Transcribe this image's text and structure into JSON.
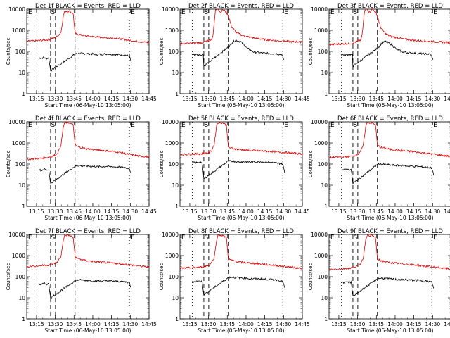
{
  "colors": {
    "events": "#000000",
    "lld": "#dd0000",
    "axis": "#000000"
  },
  "chart_data": [
    {
      "type": "line",
      "title": "Det 1f BLACK = Events, RED = LLD",
      "xlabel": "Start Time (06-May-10 13:05:00)",
      "ylabel": "Counts/sec",
      "x_ticks": [
        "13:15",
        "13:30",
        "13:45",
        "14:00",
        "14:15",
        "14:30",
        "14:45"
      ],
      "y_ticks": [
        "1",
        "10",
        "100",
        "1000",
        "10000"
      ],
      "ylog": true,
      "ylim": [
        1,
        10000
      ],
      "x_range_min": [
        0,
        100
      ],
      "markers": {
        "E_left": "E",
        "S": "S",
        "E_right": "E"
      },
      "series": [
        {
          "name": "BLACK = Events",
          "x": [
            10,
            12,
            14,
            16,
            18,
            19.5,
            39.5,
            42,
            50,
            58,
            66,
            74,
            80,
            84,
            85.5
          ],
          "values": [
            50,
            48,
            52,
            46,
            50,
            12,
            75,
            80,
            78,
            72,
            76,
            70,
            68,
            60,
            30
          ]
        },
        {
          "name": "RED = LLD",
          "x": [
            0,
            6,
            12,
            18,
            21,
            24,
            26,
            28,
            30,
            31,
            35,
            38,
            39.5,
            42,
            50,
            58,
            66,
            74,
            82,
            92,
            100
          ],
          "values": [
            300,
            310,
            330,
            360,
            420,
            460,
            600,
            800,
            5000,
            8000,
            8000,
            6000,
            700,
            640,
            520,
            480,
            440,
            420,
            350,
            290,
            260
          ]
        }
      ]
    },
    {
      "type": "line",
      "title": "Det 2f BLACK = Events, RED = LLD",
      "xlabel": "Start Time (06-May-10 13:05:00)",
      "ylabel": "Counts/sec",
      "x_ticks": [
        "13:15",
        "13:30",
        "13:45",
        "14:00",
        "14:15",
        "14:30",
        "14:45"
      ],
      "y_ticks": [
        "1",
        "10",
        "100",
        "1000",
        "10000"
      ],
      "ylog": true,
      "ylim": [
        1,
        10000
      ],
      "markers": {
        "E_left": "E",
        "S": "S",
        "E_right": "E"
      },
      "series": [
        {
          "name": "BLACK = Events",
          "x": [
            10,
            13,
            16,
            19,
            19.5,
            40,
            43,
            46,
            50,
            55,
            60,
            66,
            72,
            78,
            83,
            85
          ],
          "values": [
            70,
            72,
            68,
            70,
            20,
            170,
            280,
            340,
            280,
            140,
            95,
            85,
            80,
            78,
            70,
            40
          ]
        },
        {
          "name": "RED = LLD",
          "x": [
            0,
            6,
            12,
            18,
            20,
            23,
            26,
            27,
            29,
            31,
            33,
            35,
            37,
            39.5,
            42,
            46,
            50,
            55,
            62,
            70,
            80,
            90,
            100
          ],
          "values": [
            230,
            240,
            245,
            260,
            280,
            330,
            380,
            600,
            9000,
            11000,
            7000,
            9500,
            8000,
            5000,
            1500,
            800,
            600,
            500,
            420,
            360,
            320,
            290,
            280
          ]
        }
      ]
    },
    {
      "type": "line",
      "title": "Det 3f BLACK = Events, RED = LLD",
      "xlabel": "Start Time (06-May-10 13:05:00)",
      "ylabel": "Counts/sec",
      "x_ticks": [
        "13:15",
        "13:30",
        "13:45",
        "14:00",
        "14:15",
        "14:30",
        "14:45"
      ],
      "y_ticks": [
        "1",
        "10",
        "100",
        "1000",
        "10000"
      ],
      "ylog": true,
      "ylim": [
        1,
        10000
      ],
      "markers": {
        "E_left": "E",
        "S": "S",
        "E_right": "E"
      },
      "series": [
        {
          "name": "BLACK = Events",
          "x": [
            10,
            13,
            16,
            19,
            19.5,
            40,
            43,
            46,
            50,
            55,
            60,
            66,
            72,
            78,
            83,
            85
          ],
          "values": [
            70,
            68,
            72,
            70,
            20,
            150,
            240,
            300,
            230,
            130,
            95,
            85,
            80,
            78,
            72,
            40
          ]
        },
        {
          "name": "RED = LLD",
          "x": [
            0,
            6,
            12,
            18,
            20,
            23,
            26,
            27,
            29,
            31,
            33,
            35,
            37,
            39.5,
            42,
            46,
            50,
            55,
            62,
            70,
            80,
            90,
            100
          ],
          "values": [
            210,
            220,
            230,
            240,
            260,
            300,
            350,
            600,
            8000,
            11000,
            7000,
            10000,
            8500,
            5000,
            1400,
            700,
            520,
            450,
            380,
            330,
            300,
            280,
            260
          ]
        }
      ]
    },
    {
      "type": "line",
      "title": "Det 4f BLACK = Events, RED = LLD",
      "xlabel": "Start Time (06-May-10 13:05:00)",
      "ylabel": "Counts/sec",
      "x_ticks": [
        "13:15",
        "13:30",
        "13:45",
        "14:00",
        "14:15",
        "14:30",
        "14:45"
      ],
      "y_ticks": [
        "1",
        "10",
        "100",
        "1000",
        "10000"
      ],
      "ylog": true,
      "ylim": [
        1,
        10000
      ],
      "markers": {
        "E_left": "E",
        "S": "S",
        "E_right": "E"
      },
      "series": [
        {
          "name": "BLACK = Events",
          "x": [
            10,
            12,
            14,
            16,
            18,
            19.5,
            39.5,
            42,
            50,
            58,
            66,
            74,
            80,
            84,
            85.5
          ],
          "values": [
            55,
            50,
            58,
            52,
            55,
            12,
            80,
            85,
            80,
            75,
            78,
            72,
            70,
            62,
            30
          ]
        },
        {
          "name": "RED = LLD",
          "x": [
            0,
            6,
            12,
            18,
            21,
            24,
            26,
            28,
            30,
            31,
            35,
            38,
            39.5,
            42,
            50,
            58,
            66,
            74,
            82,
            92,
            100
          ],
          "values": [
            170,
            180,
            190,
            210,
            240,
            280,
            400,
            800,
            6000,
            9000,
            9000,
            7000,
            800,
            650,
            520,
            470,
            420,
            380,
            300,
            240,
            220
          ]
        }
      ]
    },
    {
      "type": "line",
      "title": "Det 5f BLACK = Events, RED = LLD",
      "xlabel": "Start Time (06-May-10 13:05:00)",
      "ylabel": "Counts/sec",
      "x_ticks": [
        "13:15",
        "13:30",
        "13:45",
        "14:00",
        "14:15",
        "14:30",
        "14:45"
      ],
      "y_ticks": [
        "1",
        "10",
        "100",
        "1000",
        "10000"
      ],
      "ylog": true,
      "ylim": [
        1,
        10000
      ],
      "markers": {
        "E_left": "E",
        "S": "S",
        "E_right": "E"
      },
      "series": [
        {
          "name": "BLACK = Events",
          "x": [
            10,
            12,
            14,
            16,
            18,
            19.5,
            39.5,
            42,
            50,
            58,
            66,
            74,
            80,
            84,
            85.5
          ],
          "values": [
            110,
            120,
            115,
            125,
            118,
            20,
            140,
            135,
            130,
            125,
            130,
            120,
            110,
            100,
            40
          ]
        },
        {
          "name": "RED = LLD",
          "x": [
            0,
            6,
            12,
            18,
            21,
            24,
            26,
            28,
            30,
            31,
            35,
            38,
            39.5,
            42,
            50,
            58,
            66,
            74,
            82,
            92,
            100
          ],
          "values": [
            280,
            290,
            300,
            310,
            330,
            360,
            450,
            900,
            7000,
            9000,
            9000,
            7000,
            620,
            560,
            480,
            440,
            420,
            400,
            370,
            330,
            300
          ]
        }
      ]
    },
    {
      "type": "line",
      "title": "Det 6f BLACK = Events, RED = LLD",
      "xlabel": "Start Time (06-May-10 13:05:00)",
      "ylabel": "Counts/sec",
      "x_ticks": [
        "13:15",
        "13:30",
        "13:45",
        "14:00",
        "14:15",
        "14:30",
        "14:45"
      ],
      "y_ticks": [
        "1",
        "10",
        "100",
        "1000",
        "10000"
      ],
      "ylog": true,
      "ylim": [
        1,
        10000
      ],
      "markers": {
        "E_left": "E",
        "S": "S",
        "E_right": "E"
      },
      "series": [
        {
          "name": "BLACK = Events",
          "x": [
            10,
            12,
            14,
            16,
            18,
            19.5,
            39.5,
            42,
            50,
            58,
            66,
            74,
            80,
            84,
            85.5
          ],
          "values": [
            55,
            52,
            58,
            54,
            56,
            12,
            95,
            100,
            90,
            85,
            80,
            75,
            70,
            65,
            30
          ]
        },
        {
          "name": "RED = LLD",
          "x": [
            0,
            6,
            12,
            18,
            21,
            24,
            26,
            28,
            30,
            31,
            35,
            38,
            39.5,
            42,
            50,
            58,
            66,
            74,
            82,
            92,
            100
          ],
          "values": [
            200,
            210,
            220,
            230,
            260,
            300,
            420,
            800,
            6000,
            9000,
            9000,
            7000,
            800,
            620,
            500,
            440,
            400,
            360,
            310,
            260,
            230
          ]
        }
      ]
    },
    {
      "type": "line",
      "title": "Det 7f BLACK = Events, RED = LLD",
      "xlabel": "Start Time (06-May-10 13:05:00)",
      "ylabel": "Counts/sec",
      "x_ticks": [
        "13:15",
        "13:30",
        "13:45",
        "14:00",
        "14:15",
        "14:30",
        "14:45"
      ],
      "y_ticks": [
        "1",
        "10",
        "100",
        "1000",
        "10000"
      ],
      "ylog": true,
      "ylim": [
        1,
        10000
      ],
      "markers": {
        "E_left": "E",
        "S": "S",
        "E_right": "E"
      },
      "series": [
        {
          "name": "BLACK = Events",
          "x": [
            10,
            12,
            14,
            16,
            18,
            19.5,
            39.5,
            42,
            50,
            58,
            66,
            74,
            80,
            84,
            85.5
          ],
          "values": [
            45,
            42,
            48,
            44,
            46,
            10,
            65,
            70,
            66,
            62,
            64,
            60,
            58,
            52,
            25
          ]
        },
        {
          "name": "RED = LLD",
          "x": [
            0,
            6,
            12,
            18,
            21,
            24,
            26,
            28,
            30,
            31,
            35,
            38,
            39.5,
            42,
            50,
            58,
            66,
            74,
            82,
            92,
            100
          ],
          "values": [
            300,
            320,
            340,
            360,
            400,
            450,
            600,
            900,
            6000,
            9000,
            9000,
            7000,
            900,
            700,
            560,
            500,
            460,
            420,
            380,
            320,
            280
          ]
        }
      ]
    },
    {
      "type": "line",
      "title": "Det 8f BLACK = Events, RED = LLD",
      "xlabel": "Start Time (06-May-10 13:05:00)",
      "ylabel": "Counts/sec",
      "x_ticks": [
        "13:15",
        "13:30",
        "13:45",
        "14:00",
        "14:15",
        "14:30",
        "14:45"
      ],
      "y_ticks": [
        "1",
        "10",
        "100",
        "1000",
        "10000"
      ],
      "ylog": true,
      "ylim": [
        1,
        10000
      ],
      "markers": {
        "E_left": "E",
        "S": "S",
        "E_right": "E"
      },
      "series": [
        {
          "name": "BLACK = Events",
          "x": [
            10,
            12,
            14,
            16,
            18,
            19.5,
            39.5,
            42,
            50,
            58,
            66,
            74,
            80,
            84,
            85.5
          ],
          "values": [
            60,
            58,
            62,
            60,
            64,
            14,
            90,
            95,
            88,
            80,
            78,
            74,
            70,
            62,
            30
          ]
        },
        {
          "name": "RED = LLD",
          "x": [
            0,
            6,
            12,
            18,
            21,
            24,
            26,
            28,
            30,
            31,
            35,
            38,
            39.5,
            42,
            50,
            58,
            66,
            74,
            82,
            92,
            100
          ],
          "values": [
            250,
            260,
            270,
            290,
            320,
            360,
            500,
            800,
            6000,
            9000,
            9000,
            7000,
            700,
            600,
            480,
            440,
            400,
            360,
            320,
            280,
            250
          ]
        }
      ]
    },
    {
      "type": "line",
      "title": "Det 9f BLACK = Events, RED = LLD",
      "xlabel": "Start Time (06-May-10 13:05:00)",
      "ylabel": "Counts/sec",
      "x_ticks": [
        "13:15",
        "13:30",
        "13:45",
        "14:00",
        "14:15",
        "14:30",
        "14:45"
      ],
      "y_ticks": [
        "1",
        "10",
        "100",
        "1000",
        "10000"
      ],
      "ylog": true,
      "ylim": [
        1,
        10000
      ],
      "markers": {
        "E_left": "E",
        "S": "S",
        "E_right": "E"
      },
      "series": [
        {
          "name": "BLACK = Events",
          "x": [
            10,
            12,
            14,
            16,
            18,
            19.5,
            39.5,
            42,
            50,
            58,
            66,
            74,
            80,
            84,
            85.5
          ],
          "values": [
            55,
            52,
            56,
            54,
            56,
            12,
            80,
            85,
            78,
            72,
            70,
            66,
            62,
            56,
            28
          ]
        },
        {
          "name": "RED = LLD",
          "x": [
            0,
            6,
            12,
            18,
            21,
            24,
            26,
            28,
            30,
            31,
            35,
            38,
            39.5,
            42,
            50,
            58,
            66,
            74,
            82,
            92,
            100
          ],
          "values": [
            220,
            230,
            240,
            260,
            290,
            330,
            450,
            800,
            6000,
            9000,
            9000,
            7000,
            700,
            580,
            460,
            420,
            380,
            340,
            300,
            260,
            230
          ]
        }
      ]
    }
  ]
}
